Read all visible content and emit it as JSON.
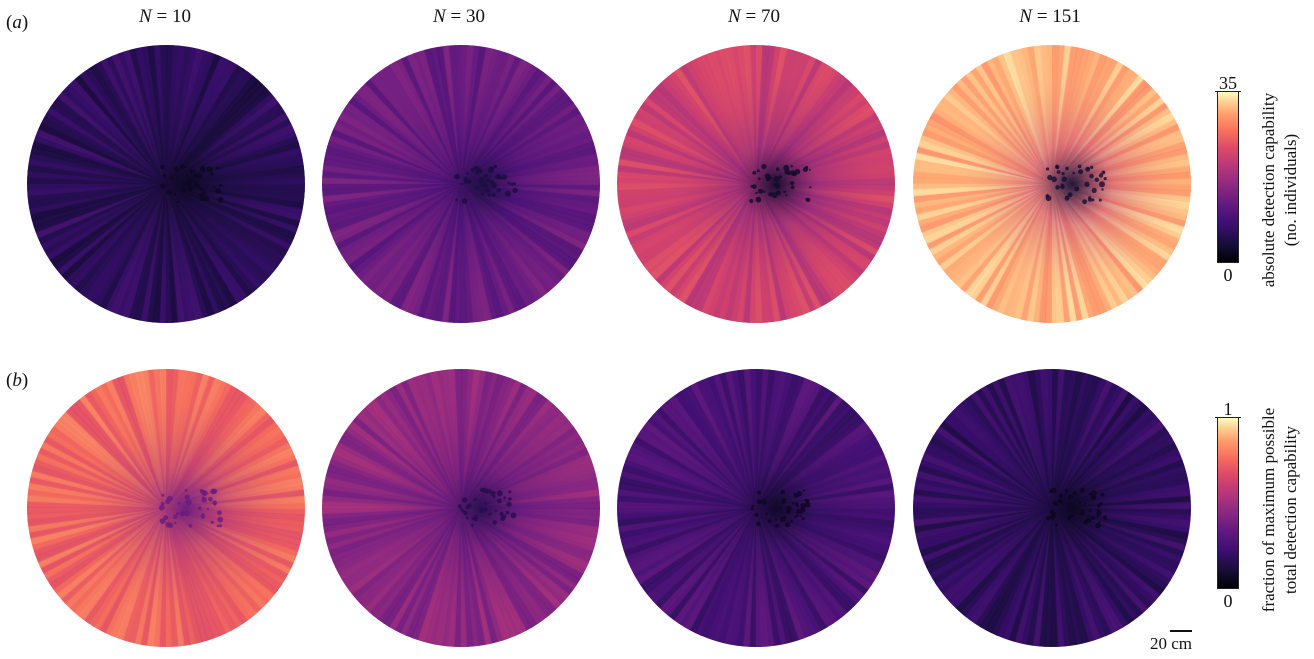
{
  "panels": {
    "a": {
      "letter": "a"
    },
    "b": {
      "letter": "b"
    }
  },
  "columns": [
    {
      "symbol": "N",
      "eq": " = 10"
    },
    {
      "symbol": "N",
      "eq": " = 30"
    },
    {
      "symbol": "N",
      "eq": " = 70"
    },
    {
      "symbol": "N",
      "eq": " = 151"
    }
  ],
  "colorbar_a": {
    "max": "35",
    "min": "0",
    "label_line1": "absolute detection capability",
    "label_line2": "(no. individuals)"
  },
  "colorbar_b": {
    "max": "1",
    "min": "0",
    "label_line1": "fraction of maximum possible",
    "label_line2": "total detection capability"
  },
  "scalebar": {
    "label": "20 cm"
  },
  "colormap": "magma",
  "chart_data": [
    {
      "type": "heatmap",
      "panel": "a",
      "colormap": "magma",
      "clim": [
        0,
        35
      ],
      "colorbar_label": "absolute detection capability (no. individuals)",
      "maps": [
        {
          "group_size": "N = 10",
          "approx_level": 0.15,
          "outer_level": 0.18,
          "center_level": 0.06
        },
        {
          "group_size": "N = 30",
          "approx_level": 0.32,
          "outer_level": 0.36,
          "center_level": 0.12
        },
        {
          "group_size": "N = 70",
          "approx_level": 0.55,
          "outer_level": 0.62,
          "center_level": 0.08
        },
        {
          "group_size": "N = 151",
          "approx_level": 0.82,
          "outer_level": 0.9,
          "center_level": 0.1
        }
      ]
    },
    {
      "type": "heatmap",
      "panel": "b",
      "colormap": "magma",
      "clim": [
        0,
        1
      ],
      "colorbar_label": "fraction of maximum possible total detection capability",
      "maps": [
        {
          "group_size": "N = 10",
          "approx_level": 0.7,
          "outer_level": 0.75,
          "center_level": 0.35
        },
        {
          "group_size": "N = 30",
          "approx_level": 0.42,
          "outer_level": 0.45,
          "center_level": 0.15
        },
        {
          "group_size": "N = 70",
          "approx_level": 0.25,
          "outer_level": 0.26,
          "center_level": 0.06
        },
        {
          "group_size": "N = 151",
          "approx_level": 0.18,
          "outer_level": 0.19,
          "center_level": 0.05
        }
      ]
    }
  ]
}
